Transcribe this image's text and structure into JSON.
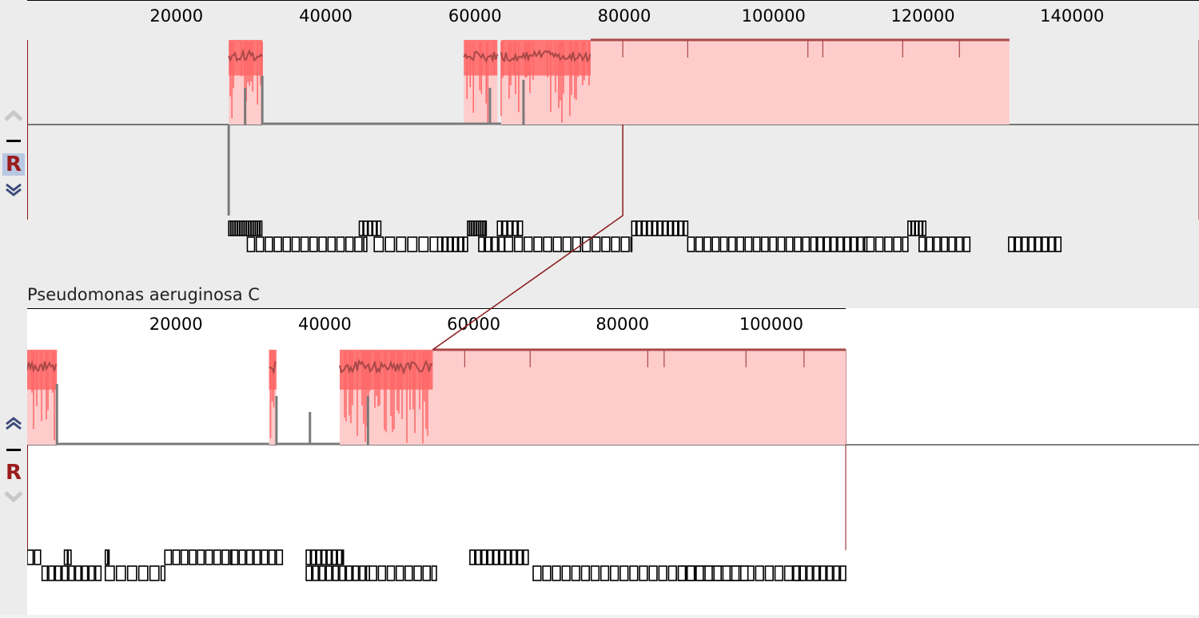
{
  "colors": {
    "lcb_fill": "#ffcccc",
    "lcb_peak": "#ff6666",
    "lcb_line": "#a84848",
    "gap_line": "#7a7a7a",
    "connector": "#8b1a1a",
    "panel_bg": "#ececec",
    "axis_line": "#000000"
  },
  "icons": {
    "up": "chevron-up-icon",
    "minus": "minus-icon",
    "reverse": "reverse-icon",
    "down": "chevron-down-icon"
  },
  "panels": [
    {
      "id": "top",
      "name": "",
      "bp_max": 157000,
      "ticks": [
        20000,
        40000,
        60000,
        80000,
        100000,
        120000,
        140000
      ],
      "controls": {
        "reverse_label": "R"
      }
    },
    {
      "id": "bottom",
      "name": "Pseudomonas aeruginosa C",
      "bp_max": 110000,
      "ticks": [
        20000,
        40000,
        60000,
        80000,
        100000
      ],
      "controls": {
        "reverse_label": "R"
      }
    }
  ]
}
